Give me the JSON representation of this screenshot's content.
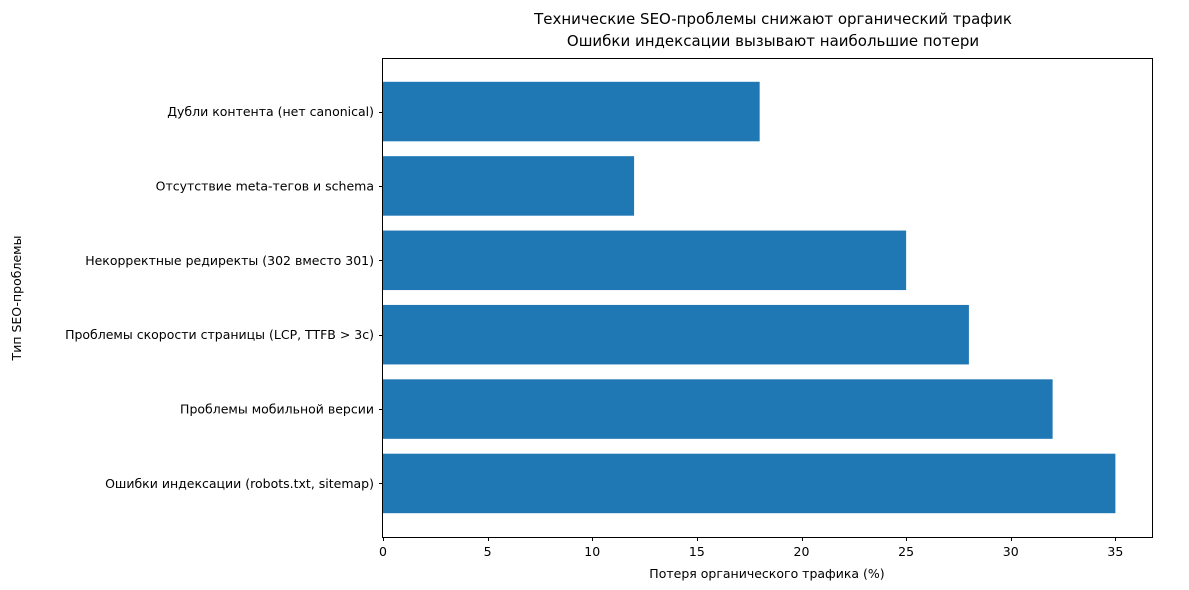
{
  "chart_data": {
    "type": "bar",
    "orientation": "horizontal",
    "title": "Технические SEO-проблемы снижают органический трафик",
    "subtitle": "Ошибки индексации вызывают наибольшие потери",
    "xlabel": "Потеря органического трафика (%)",
    "ylabel": "Тип SEO-проблемы",
    "categories": [
      "Ошибки индексации (robots.txt, sitemap)",
      "Проблемы мобильной версии",
      "Проблемы скорости страницы (LCP, TTFB > 3с)",
      "Некорректные редиректы (302 вместо 301)",
      "Отсутствие meta-тегов и schema",
      "Дубли контента (нет canonical)"
    ],
    "values": [
      35,
      32,
      28,
      25,
      12,
      18
    ],
    "xlim": [
      0,
      36.75
    ],
    "xticks": [
      0,
      5,
      10,
      15,
      20,
      25,
      30,
      35
    ],
    "bar_color": "#1f77b4",
    "grid": false,
    "legend": "none"
  }
}
